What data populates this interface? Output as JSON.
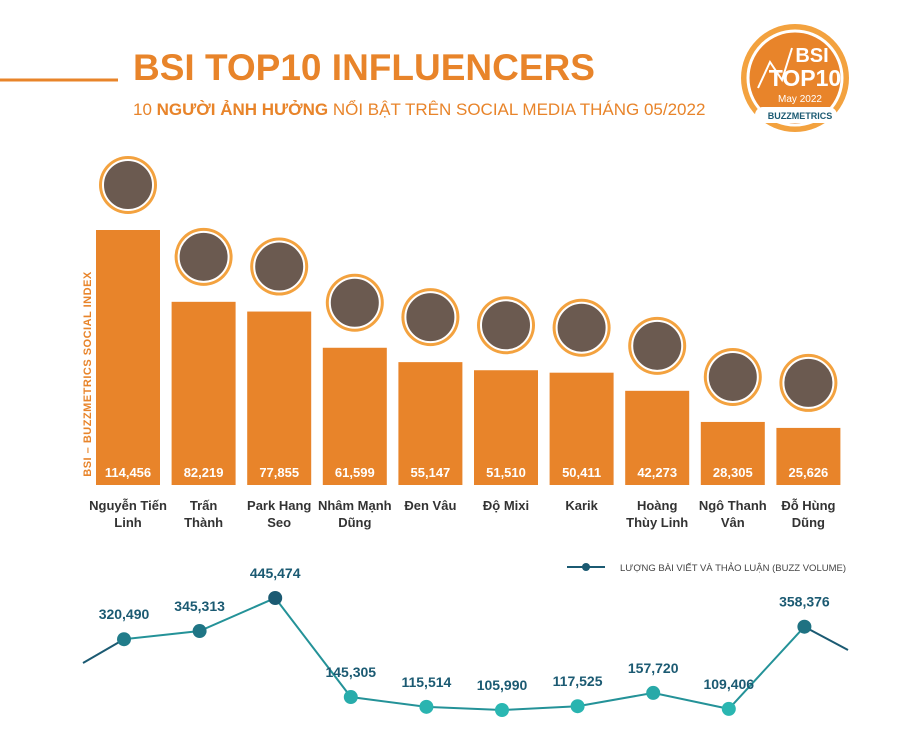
{
  "chart_data": {
    "type": "bar",
    "title": "BSI TOP10 INFLUENCERS",
    "subtitle_parts": [
      "10 ",
      "NGƯỜI ẢNH HƯỞNG",
      " NỔI BẬT TRÊN SOCIAL MEDIA THÁNG 05/2022"
    ],
    "y_label": "BSI – BUZZMETRICS SOCIAL INDEX",
    "logo": {
      "line1": "BSI",
      "line2": "TOP10",
      "date": "May 2022",
      "brand": "BUZZMETRICS"
    },
    "categories": [
      "Nguyễn Tiến\nLinh",
      "Trấn\nThành",
      "Park Hang\nSeo",
      "Nhâm Mạnh\nDũng",
      "Đen Vâu",
      "Độ Mixi",
      "Karik",
      "Hoàng\nThùy Linh",
      "Ngô Thanh\nVân",
      "Đỗ Hùng\nDũng"
    ],
    "color": "#e8842a",
    "values": [
      114456,
      82219,
      77855,
      61599,
      55147,
      51510,
      50411,
      42273,
      28305,
      25626
    ],
    "value_labels": [
      "114,456",
      "82,219",
      "77,855",
      "61,599",
      "55,147",
      "51,510",
      "50,411",
      "42,273",
      "28,305",
      "25,626"
    ],
    "line_series": {
      "name": "LƯỢNG BÀI VIẾT VÀ THẢO LUẬN (BUZZ VOLUME)",
      "colors": [
        "#2ab7b2",
        "#1b5a72"
      ],
      "values": [
        320490,
        345313,
        445474,
        145305,
        115514,
        105990,
        117525,
        157720,
        109406,
        358376
      ],
      "value_labels": [
        "320,490",
        "345,313",
        "445,474",
        "145,305",
        "115,514",
        "105,990",
        "117,525",
        "157,720",
        "109,406",
        "358,376"
      ]
    }
  }
}
